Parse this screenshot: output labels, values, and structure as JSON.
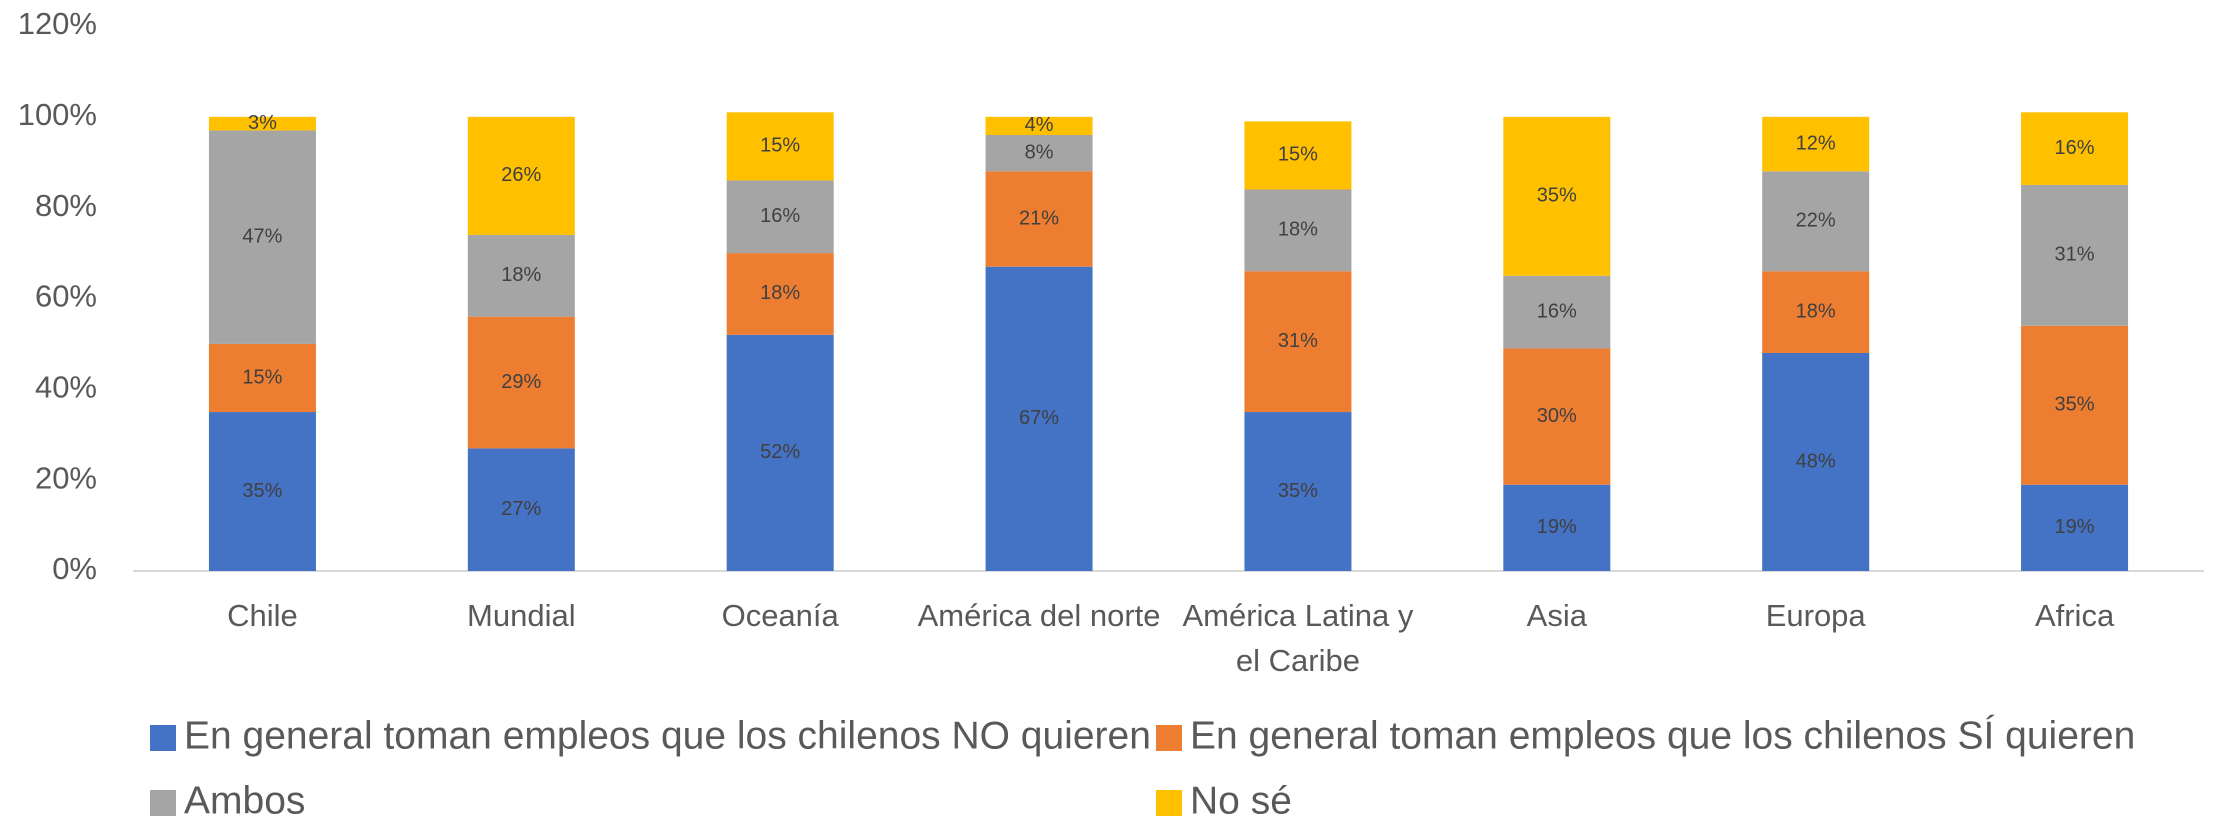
{
  "chart_data": {
    "type": "stacked_bar",
    "categories": [
      "Chile",
      "Mundial",
      "Oceanía",
      "América del norte",
      "América Latina y el Caribe",
      "Asia",
      "Europa",
      "Africa"
    ],
    "series": [
      {
        "name": "En general toman empleos que los chilenos NO quieren",
        "color": "#4472c4",
        "values": [
          35,
          27,
          52,
          67,
          35,
          19,
          48,
          19
        ],
        "value_labels": [
          "35%",
          "27%",
          "52%",
          "67%",
          "35%",
          "19%",
          "48%",
          "19%"
        ]
      },
      {
        "name": "En general toman empleos que los chilenos SÍ quieren",
        "color": "#ed7d31",
        "values": [
          15,
          29,
          18,
          21,
          31,
          30,
          18,
          35
        ],
        "value_labels": [
          "15%",
          "29%",
          "18%",
          "21%",
          "31%",
          "30%",
          "18%",
          "35%"
        ]
      },
      {
        "name": "Ambos",
        "color": "#a5a5a5",
        "values": [
          47,
          18,
          16,
          8,
          18,
          16,
          22,
          31
        ],
        "value_labels": [
          "47%",
          "18%",
          "16%",
          "8%",
          "18%",
          "16%",
          "22%",
          "31%"
        ]
      },
      {
        "name": "No sé",
        "color": "#ffc000",
        "values": [
          3,
          26,
          15,
          4,
          15,
          35,
          12,
          16
        ],
        "value_labels": [
          "3%",
          "26%",
          "15%",
          "4%",
          "15%",
          "35%",
          "12%",
          "16%"
        ]
      }
    ],
    "ylim": [
      0,
      120
    ],
    "yticks": [
      {
        "value": 0,
        "label": "0%"
      },
      {
        "value": 20,
        "label": "20%"
      },
      {
        "value": 40,
        "label": "40%"
      },
      {
        "value": 60,
        "label": "60%"
      },
      {
        "value": 80,
        "label": "80%"
      },
      {
        "value": 100,
        "label": "100%"
      },
      {
        "value": 120,
        "label": "120%"
      }
    ],
    "grid": false,
    "legend": "bottom"
  }
}
